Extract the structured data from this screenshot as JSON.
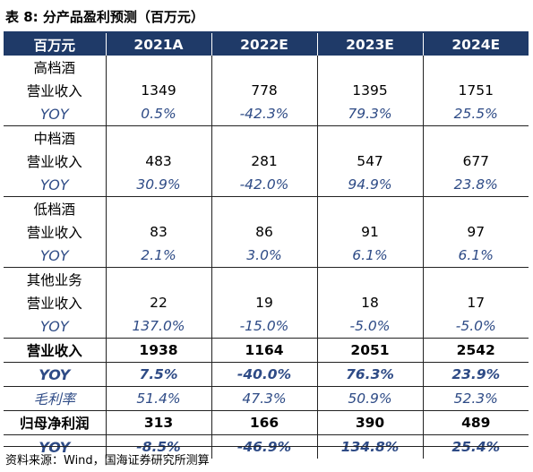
{
  "caption": "表 8:  分产品盈利预测（百万元）",
  "header": {
    "unit": "百万元",
    "years": [
      "2021A",
      "2022E",
      "2023E",
      "2024E"
    ]
  },
  "rows": [
    {
      "type": "group",
      "label": "高档酒",
      "values": [
        "",
        "",
        "",
        ""
      ]
    },
    {
      "type": "value",
      "label": "营业收入",
      "values": [
        "1349",
        "778",
        "1395",
        "1751"
      ]
    },
    {
      "type": "yoy",
      "label": "YOY",
      "values": [
        "0.5%",
        "-42.3%",
        "79.3%",
        "25.5%"
      ]
    },
    {
      "type": "group",
      "label": "中档酒",
      "values": [
        "",
        "",
        "",
        ""
      ]
    },
    {
      "type": "value",
      "label": "营业收入",
      "values": [
        "483",
        "281",
        "547",
        "677"
      ]
    },
    {
      "type": "yoy",
      "label": "YOY",
      "values": [
        "30.9%",
        "-42.0%",
        "94.9%",
        "23.8%"
      ]
    },
    {
      "type": "group",
      "label": "低档酒",
      "values": [
        "",
        "",
        "",
        ""
      ]
    },
    {
      "type": "value",
      "label": "营业收入",
      "values": [
        "83",
        "86",
        "91",
        "97"
      ]
    },
    {
      "type": "yoy",
      "label": "YOY",
      "values": [
        "2.1%",
        "3.0%",
        "6.1%",
        "6.1%"
      ]
    },
    {
      "type": "group",
      "label": "其他业务",
      "values": [
        "",
        "",
        "",
        ""
      ]
    },
    {
      "type": "value",
      "label": "营业收入",
      "values": [
        "22",
        "19",
        "18",
        "17"
      ]
    },
    {
      "type": "yoy",
      "label": "YOY",
      "values": [
        "137.0%",
        "-15.0%",
        "-5.0%",
        "-5.0%"
      ]
    },
    {
      "type": "bold",
      "label": "营业收入",
      "values": [
        "1938",
        "1164",
        "2051",
        "2542"
      ]
    },
    {
      "type": "yoybold",
      "label": "YOY",
      "values": [
        "7.5%",
        "-40.0%",
        "76.3%",
        "23.9%"
      ]
    },
    {
      "type": "margin",
      "label": "毛利率",
      "values": [
        "51.4%",
        "47.3%",
        "50.9%",
        "52.3%"
      ]
    },
    {
      "type": "bold",
      "label": "归母净利润",
      "values": [
        "313",
        "166",
        "390",
        "489"
      ]
    },
    {
      "type": "yoybold",
      "label": "YOY",
      "values": [
        "-8.5%",
        "-46.9%",
        "134.8%",
        "25.4%"
      ]
    }
  ],
  "source": "资料来源：Wind，国海证券研究所测算"
}
